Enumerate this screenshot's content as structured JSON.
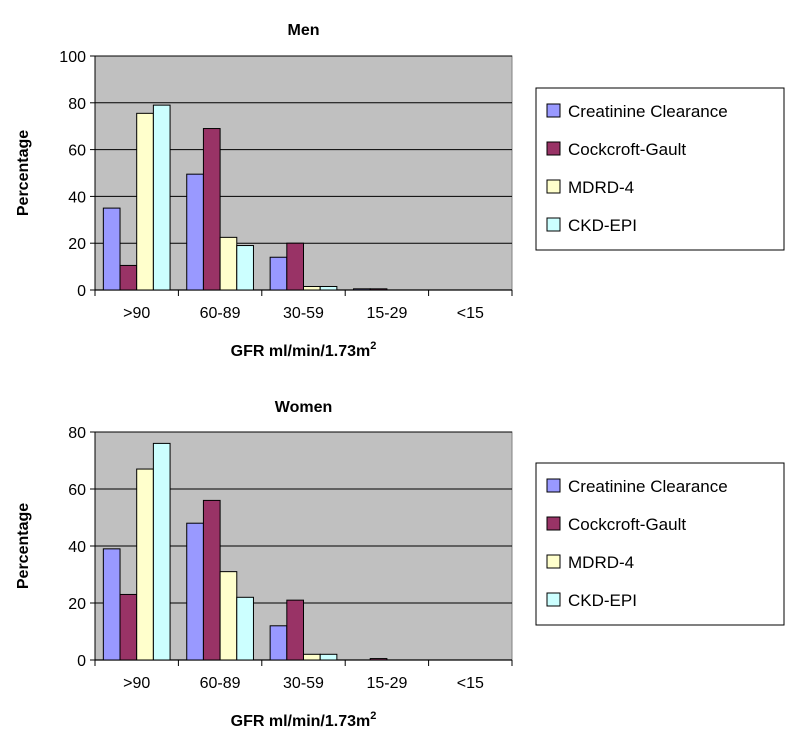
{
  "chart_data": [
    {
      "type": "bar",
      "title": "Men",
      "xlabel": "GFR ml/min/1.73m",
      "xlabel_superscript": "2",
      "ylabel": "Percentage",
      "ylim": [
        0,
        100
      ],
      "yticks": [
        0,
        20,
        40,
        60,
        80,
        100
      ],
      "grid": true,
      "legend_position": "right",
      "categories": [
        ">90",
        "60-89",
        "30-59",
        "15-29",
        "<15"
      ],
      "series": [
        {
          "name": "Creatinine Clearance",
          "color": "#9999ff",
          "values": [
            35,
            49.5,
            14,
            0.5,
            0
          ]
        },
        {
          "name": "Cockcroft-Gault",
          "color": "#993366",
          "values": [
            10.5,
            69,
            20,
            0.5,
            0
          ]
        },
        {
          "name": "MDRD-4",
          "color": "#ffffcc",
          "values": [
            75.5,
            22.5,
            1.5,
            0,
            0
          ]
        },
        {
          "name": "CKD-EPI",
          "color": "#ccffff",
          "values": [
            79,
            19,
            1.5,
            0,
            0
          ]
        }
      ]
    },
    {
      "type": "bar",
      "title": "Women",
      "xlabel": "GFR ml/min/1.73m",
      "xlabel_superscript": "2",
      "ylabel": "Percentage",
      "ylim": [
        0,
        80
      ],
      "yticks": [
        0,
        20,
        40,
        60,
        80
      ],
      "grid": true,
      "legend_position": "right",
      "categories": [
        ">90",
        "60-89",
        "30-59",
        "15-29",
        "<15"
      ],
      "series": [
        {
          "name": "Creatinine Clearance",
          "color": "#9999ff",
          "values": [
            39,
            48,
            12,
            0,
            0
          ]
        },
        {
          "name": "Cockcroft-Gault",
          "color": "#993366",
          "values": [
            23,
            56,
            21,
            0.5,
            0
          ]
        },
        {
          "name": "MDRD-4",
          "color": "#ffffcc",
          "values": [
            67,
            31,
            2,
            0,
            0
          ]
        },
        {
          "name": "CKD-EPI",
          "color": "#ccffff",
          "values": [
            76,
            22,
            2,
            0,
            0
          ]
        }
      ]
    }
  ],
  "colors": {
    "plot_background": "#c0c0c0",
    "gridline": "#000000",
    "bar_outline": "#000000"
  }
}
